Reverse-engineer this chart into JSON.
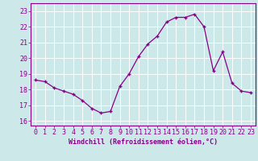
{
  "x": [
    0,
    1,
    2,
    3,
    4,
    5,
    6,
    7,
    8,
    9,
    10,
    11,
    12,
    13,
    14,
    15,
    16,
    17,
    18,
    19,
    20,
    21,
    22,
    23
  ],
  "y": [
    18.6,
    18.5,
    18.1,
    17.9,
    17.7,
    17.3,
    16.8,
    16.5,
    16.6,
    18.2,
    19.0,
    20.1,
    20.9,
    21.4,
    22.3,
    22.6,
    22.6,
    22.8,
    22.0,
    19.2,
    20.4,
    18.4,
    17.9,
    17.8
  ],
  "line_color": "#880088",
  "marker": "+",
  "marker_size": 3.5,
  "linewidth": 0.9,
  "marker_linewidth": 1.0,
  "xlabel": "Windchill (Refroidissement éolien,°C)",
  "xlabel_fontsize": 6.0,
  "ylabel_ticks": [
    16,
    17,
    18,
    19,
    20,
    21,
    22,
    23
  ],
  "xlim": [
    -0.5,
    23.5
  ],
  "ylim": [
    15.7,
    23.5
  ],
  "background_color": "#cce8e8",
  "grid_color": "#ffffff",
  "tick_color": "#880088",
  "tick_fontsize": 6.0,
  "spine_color": "#880088"
}
